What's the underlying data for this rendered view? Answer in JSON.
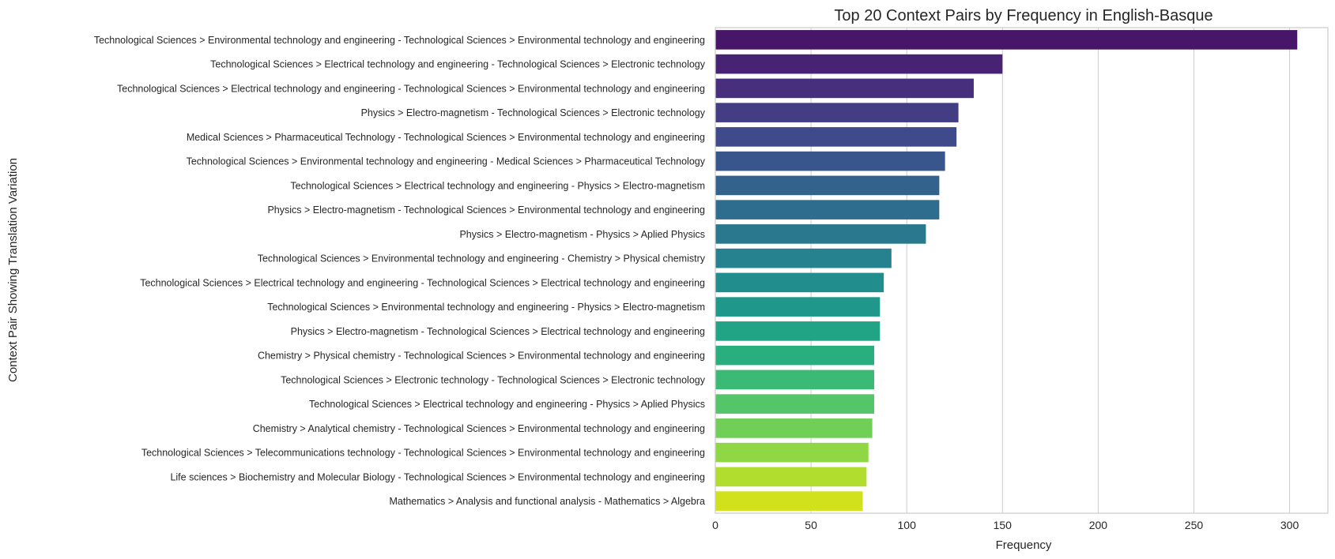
{
  "chart_data": {
    "type": "bar",
    "orientation": "horizontal",
    "title": "Top 20 Context Pairs by Frequency in English-Basque",
    "xlabel": "Frequency",
    "ylabel": "Context Pair Showing Translation Variation",
    "xlim": [
      0,
      320
    ],
    "xticks": [
      0,
      50,
      100,
      150,
      200,
      250,
      300
    ],
    "grid": "vertical",
    "palette": "viridis",
    "colors": [
      "#481668",
      "#482374",
      "#472f7d",
      "#433d84",
      "#3e4a89",
      "#39568c",
      "#33628d",
      "#2e6d8e",
      "#2a788e",
      "#26828e",
      "#228d8d",
      "#1f988b",
      "#21a386",
      "#29af7f",
      "#3bba75",
      "#54c568",
      "#70cf57",
      "#8fd744",
      "#b1dd2f",
      "#d1e11c"
    ],
    "categories": [
      "Technological Sciences > Environmental technology and engineering - Technological Sciences > Environmental technology and engineering",
      "Technological Sciences > Electrical technology and engineering - Technological Sciences > Electronic technology",
      "Technological Sciences > Electrical technology and engineering - Technological Sciences > Environmental technology and engineering",
      "Physics > Electro-magnetism - Technological Sciences > Electronic technology",
      "Medical Sciences > Pharmaceutical Technology - Technological Sciences > Environmental technology and engineering",
      "Technological Sciences > Environmental technology and engineering - Medical Sciences > Pharmaceutical Technology",
      "Technological Sciences > Electrical technology and engineering - Physics > Electro-magnetism",
      "Physics > Electro-magnetism - Technological Sciences > Environmental technology and engineering",
      "Physics > Electro-magnetism - Physics > Aplied Physics",
      "Technological Sciences > Environmental technology and engineering - Chemistry > Physical chemistry",
      "Technological Sciences > Electrical technology and engineering - Technological Sciences > Electrical technology and engineering",
      "Technological Sciences > Environmental technology and engineering - Physics > Electro-magnetism",
      "Physics > Electro-magnetism - Technological Sciences > Electrical technology and engineering",
      "Chemistry > Physical chemistry - Technological Sciences > Environmental technology and engineering",
      "Technological Sciences > Electronic technology - Technological Sciences > Electronic technology",
      "Technological Sciences > Electrical technology and engineering - Physics > Aplied Physics",
      "Chemistry > Analytical chemistry - Technological Sciences > Environmental technology and engineering",
      "Technological Sciences > Telecommunications technology - Technological Sciences > Environmental technology and engineering",
      "Life sciences > Biochemistry and Molecular Biology - Technological Sciences > Environmental technology and engineering",
      "Mathematics > Analysis and functional analysis - Mathematics > Algebra"
    ],
    "values": [
      304,
      150,
      135,
      127,
      126,
      120,
      117,
      117,
      110,
      92,
      88,
      86,
      86,
      83,
      83,
      83,
      82,
      80,
      79,
      77
    ]
  }
}
